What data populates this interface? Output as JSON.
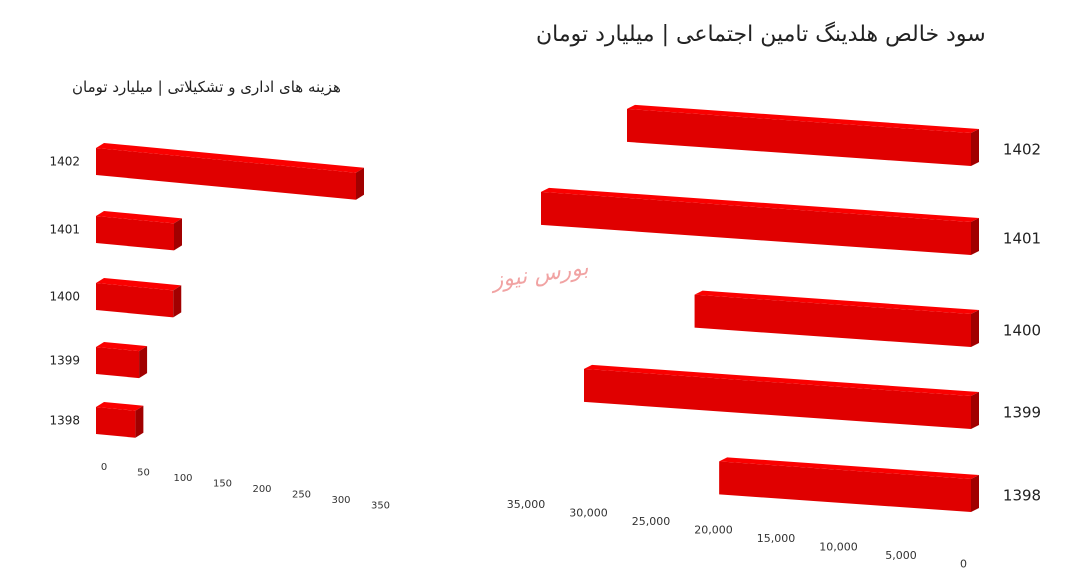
{
  "watermark": "بورس نیوز",
  "chart_data": [
    {
      "type": "bar",
      "orientation": "horizontal",
      "title": "هزینه های اداری و تشکیلاتی | میلیارد تومان",
      "categories": [
        "1402",
        "1401",
        "1400",
        "1399",
        "1398"
      ],
      "values": [
        350,
        105,
        104,
        58,
        53
      ],
      "xlim": [
        0,
        350
      ],
      "xticks": [
        "0",
        "50",
        "100",
        "150",
        "200",
        "250",
        "300",
        "350"
      ],
      "grid": false,
      "color": "#e00000"
    },
    {
      "type": "bar",
      "orientation": "horizontal",
      "reversed_x": true,
      "title": "سود خالص هلدینگ تامین اجتماعی | میلیارد تومان",
      "categories": [
        "1402",
        "1401",
        "1400",
        "1399",
        "1398"
      ],
      "values": [
        28000,
        35000,
        22500,
        31500,
        20500
      ],
      "xlim": [
        0,
        35000
      ],
      "xticks": [
        "35,000",
        "30,000",
        "25,000",
        "20,000",
        "15,000",
        "10,000",
        "5,000",
        "0"
      ],
      "grid": false,
      "color": "#e00000"
    }
  ]
}
